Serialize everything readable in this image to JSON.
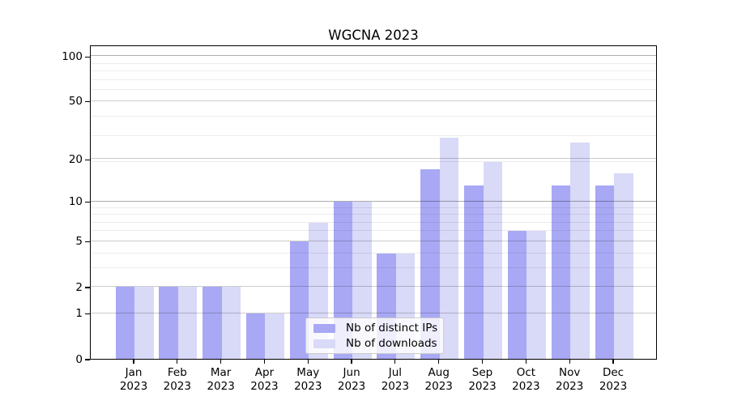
{
  "title": "WGCNA 2023",
  "chart_data": {
    "type": "bar",
    "title": "WGCNA 2023",
    "months": [
      "Jan",
      "Feb",
      "Mar",
      "Apr",
      "May",
      "Jun",
      "Jul",
      "Aug",
      "Sep",
      "Oct",
      "Nov",
      "Dec"
    ],
    "year": "2023",
    "categories": [
      "Jan 2023",
      "Feb 2023",
      "Mar 2023",
      "Apr 2023",
      "May 2023",
      "Jun 2023",
      "Jul 2023",
      "Aug 2023",
      "Sep 2023",
      "Oct 2023",
      "Nov 2023",
      "Dec 2023"
    ],
    "series": [
      {
        "name": "Nb of distinct IPs",
        "key": "distinct-ips",
        "color": "#a8a8f5",
        "values": [
          2,
          2,
          2,
          1,
          5,
          10,
          4,
          17,
          13,
          6,
          13,
          13
        ]
      },
      {
        "name": "Nb of downloads",
        "key": "downloads",
        "color": "#d9d9f8",
        "values": [
          2,
          2,
          2,
          1,
          7,
          10,
          4,
          28,
          19,
          6,
          26,
          16
        ]
      }
    ],
    "xlabel": "",
    "ylabel": "",
    "y_axis": {
      "scale": "log10(1+y)",
      "tick_labels": [
        "0",
        "1",
        "2",
        "5",
        "10",
        "20",
        "50",
        "100"
      ],
      "tick_values": [
        0,
        1,
        2,
        5,
        10,
        20,
        50,
        100
      ],
      "emphasized_gridlines": [
        10,
        100
      ],
      "minor_gridlines_1plus_y": [
        4,
        5,
        7,
        8,
        9,
        10,
        20,
        30,
        40,
        60,
        70,
        80,
        90
      ],
      "ylim": [
        0,
        119
      ]
    },
    "legend": {
      "position": "inside-bottom-center",
      "entries": [
        "Nb of distinct IPs",
        "Nb of downloads"
      ]
    },
    "grid": true,
    "colors": {
      "bar_distinct_ips": "#a8a8f5",
      "bar_downloads": "#d9d9f8",
      "grid_major": "#c9c9c9",
      "grid_minor": "#ececec",
      "grid_emphasized": "#adadad",
      "axis": "#000000"
    }
  }
}
